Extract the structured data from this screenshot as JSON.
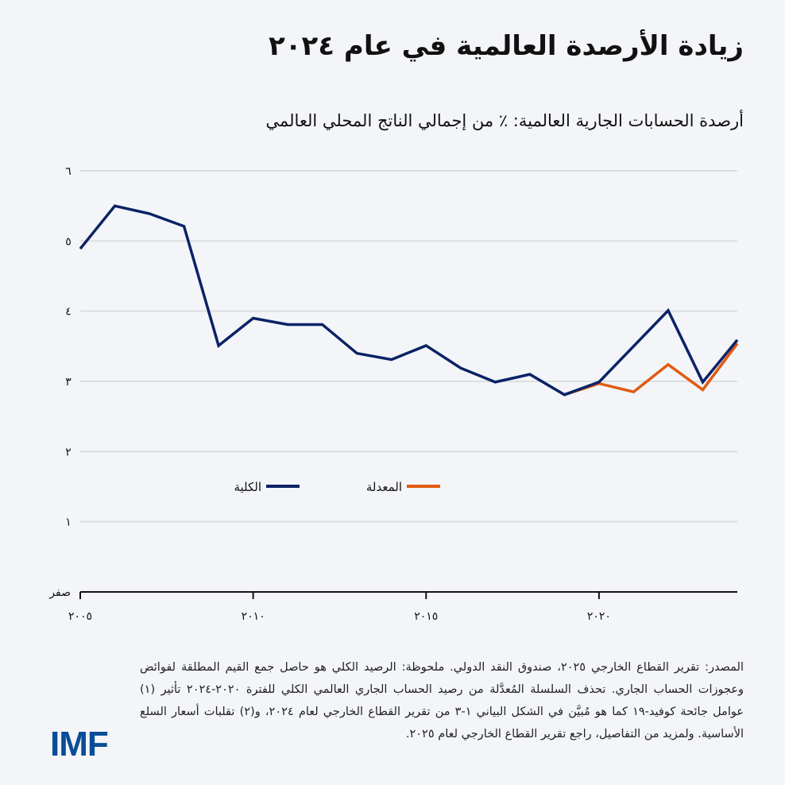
{
  "title": "زيادة الأرصدة العالمية في عام ٢٠٢٤",
  "subtitle": "أرصدة الحسابات الجارية العالمية: ٪ من إجمالي الناتج المحلي العالمي",
  "note": "المصدر: تقرير القطاع الخارجي ٢٠٢٥، صندوق النقد الدولي. ملحوظة: الرصيد الكلي هو حاصل جمع القيم المطلقة لفوائض وعجوزات الحساب الجاري. تحذف السلسلة المُعدَّلة من رصيد الحساب الجاري العالمي الكلي للفترة ٢٠٢٠-٢٠٢٤ تأثير (١) عوامل جائحة كوفيد-١٩ كما هو مُبيَّن في الشكل البياني ١-٣ من تقرير القطاع الخارجي لعام ٢٠٢٤، و(٢) تقلبات أسعار السلع الأساسية. ولمزيد من التفاصيل، راجع تقرير القطاع الخارجي لعام ٢٠٢٥.",
  "logo": "IMF",
  "chart_data": {
    "type": "line",
    "title": "زيادة الأرصدة العالمية في عام ٢٠٢٤",
    "subtitle": "أرصدة الحسابات الجارية العالمية: ٪ من إجمالي الناتج المحلي العالمي",
    "x": [
      2005,
      2006,
      2007,
      2008,
      2009,
      2010,
      2011,
      2012,
      2013,
      2014,
      2015,
      2016,
      2017,
      2018,
      2019,
      2020,
      2021,
      2022,
      2023,
      2024
    ],
    "xticks": [
      2005,
      2010,
      2015,
      2020
    ],
    "xtick_labels": [
      "٢٠٠٥",
      "٢٠١٠",
      "٢٠١٥",
      "٢٠٢٠"
    ],
    "yticks": [
      0,
      1,
      2,
      3,
      4,
      5,
      6
    ],
    "ytick_labels": [
      "صفر",
      "١",
      "٢",
      "٣",
      "٤",
      "٥",
      "٦"
    ],
    "xlim": [
      2005,
      2024
    ],
    "ylim": [
      0,
      6
    ],
    "grid": "horizontal",
    "legend_placement": "center-bottom",
    "series": [
      {
        "name": "الكلية",
        "color": "#0b2265",
        "x": [
          2005,
          2006,
          2007,
          2008,
          2009,
          2010,
          2011,
          2012,
          2013,
          2014,
          2015,
          2016,
          2017,
          2018,
          2019,
          2020,
          2021,
          2022,
          2023,
          2024
        ],
        "values": [
          4.89,
          5.5,
          5.39,
          5.21,
          3.51,
          3.9,
          3.81,
          3.81,
          3.4,
          3.31,
          3.51,
          3.19,
          2.99,
          3.1,
          2.81,
          2.99,
          3.5,
          4.01,
          2.99,
          3.59
        ]
      },
      {
        "name": "المعدلة",
        "color": "#e05a12",
        "x": [
          2019,
          2020,
          2021,
          2022,
          2023,
          2024
        ],
        "values": [
          2.81,
          2.97,
          2.85,
          3.24,
          2.88,
          3.54
        ]
      }
    ]
  }
}
